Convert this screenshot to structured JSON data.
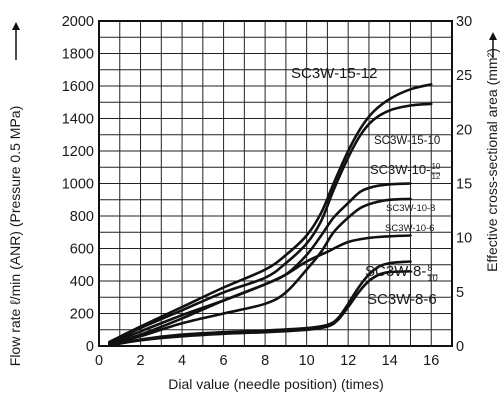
{
  "chart_data": {
    "type": "line",
    "title": "",
    "xlabel": "Dial value (needle position) (times)",
    "ylabel": "Flow rate ℓ/min (ANR) (Pressure 0.5 MPa)",
    "y2label": "Effective cross-sectional area (mm²)",
    "xlim": [
      0,
      17
    ],
    "ylim": [
      0,
      2000
    ],
    "y2lim": [
      0,
      30
    ],
    "xticks": [
      "0",
      "2",
      "4",
      "6",
      "8",
      "10",
      "12",
      "14",
      "16"
    ],
    "yticks": [
      "0",
      "200",
      "400",
      "600",
      "800",
      "1000",
      "1200",
      "1400",
      "1600",
      "1800",
      "2000"
    ],
    "y2ticks": [
      "0",
      "5",
      "10",
      "15",
      "20",
      "25",
      "30"
    ],
    "grid": true,
    "series": [
      {
        "name": "SC3W-15-12",
        "label_main": "SC3W-15-12",
        "x": [
          0.5,
          2,
          4,
          6,
          8,
          9,
          10,
          10.7,
          11.3,
          12,
          12.6,
          13.2,
          14,
          15,
          16
        ],
        "y": [
          25,
          120,
          240,
          360,
          470,
          560,
          680,
          820,
          1000,
          1200,
          1340,
          1440,
          1520,
          1580,
          1610
        ]
      },
      {
        "name": "SC3W-15-10",
        "label_main": "SC3W-15-10",
        "x": [
          0.5,
          2,
          4,
          6,
          8,
          9,
          10,
          10.7,
          11.3,
          12,
          12.6,
          13.2,
          14,
          15,
          16
        ],
        "y": [
          20,
          110,
          220,
          330,
          420,
          510,
          630,
          770,
          960,
          1160,
          1300,
          1390,
          1450,
          1480,
          1490
        ]
      },
      {
        "name": "SC3W-10-10/12",
        "label_main": "SC3W-10-",
        "label_sup": "10",
        "label_sub": "12",
        "x": [
          0.5,
          2,
          4,
          6,
          8,
          9,
          10,
          10.7,
          11.3,
          12,
          12.6,
          13.2,
          14,
          15
        ],
        "y": [
          15,
          90,
          190,
          280,
          380,
          440,
          560,
          680,
          790,
          880,
          950,
          980,
          995,
          1000
        ]
      },
      {
        "name": "SC3W-10-8",
        "label_main": "SC3W-10-8",
        "x": [
          0.5,
          2,
          4,
          6,
          8,
          9,
          10,
          10.7,
          11.3,
          12,
          12.6,
          13.2,
          14,
          15
        ],
        "y": [
          12,
          60,
          140,
          200,
          260,
          330,
          470,
          580,
          700,
          790,
          850,
          880,
          900,
          905
        ]
      },
      {
        "name": "SC3W-8-8/10",
        "label_main": "SC3W-8-",
        "label_sup": "8",
        "label_sub": "10",
        "x": [
          0.5,
          2,
          4,
          6,
          8,
          9,
          10,
          11,
          12,
          13,
          14,
          15
        ],
        "y": [
          10,
          70,
          170,
          280,
          380,
          440,
          520,
          580,
          640,
          665,
          675,
          680
        ]
      },
      {
        "name": "SC3W-10-6",
        "label_main": "SC3W-10-6",
        "x": [
          0.5,
          2,
          4,
          6,
          8,
          10,
          11,
          11.5,
          12,
          12.5,
          13,
          13.5,
          14,
          15
        ],
        "y": [
          5,
          40,
          70,
          85,
          95,
          110,
          130,
          170,
          260,
          360,
          440,
          490,
          510,
          520
        ]
      },
      {
        "name": "SC3W-8-6",
        "label_main": "SC3W-8-6",
        "x": [
          0.5,
          2,
          4,
          6,
          8,
          10,
          11,
          11.5,
          12,
          12.5,
          13,
          13.5,
          14,
          15
        ],
        "y": [
          4,
          35,
          60,
          75,
          85,
          100,
          120,
          160,
          240,
          330,
          400,
          440,
          455,
          460
        ]
      }
    ]
  }
}
